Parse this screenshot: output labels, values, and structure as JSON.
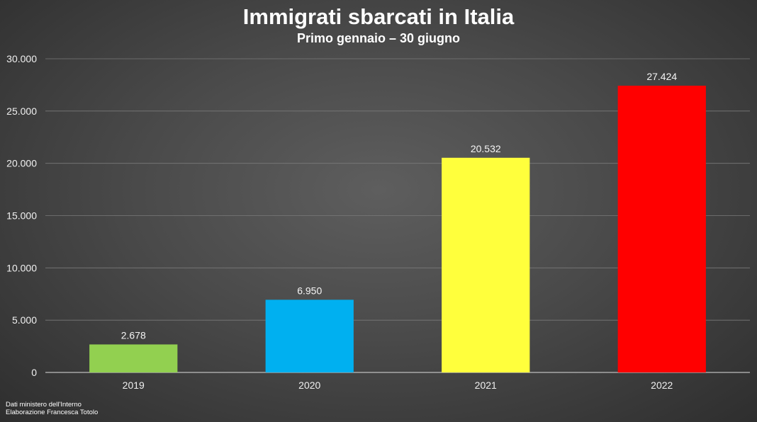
{
  "chart_data": {
    "type": "bar",
    "title": "Immigrati sbarcati in Italia",
    "subtitle": "Primo gennaio – 30 giugno",
    "categories": [
      "2019",
      "2020",
      "2021",
      "2022"
    ],
    "values": [
      2678,
      6950,
      20532,
      27424
    ],
    "value_labels": [
      "2.678",
      "6.950",
      "20.532",
      "27.424"
    ],
    "colors": [
      "#92d050",
      "#00b0f0",
      "#ffff3c",
      "#ff0000"
    ],
    "ylim": [
      0,
      30000
    ],
    "yticks": [
      0,
      5000,
      10000,
      15000,
      20000,
      25000,
      30000
    ],
    "ytick_labels": [
      "0",
      "5.000",
      "10.000",
      "15.000",
      "20.000",
      "25.000",
      "30.000"
    ],
    "xlabel": "",
    "ylabel": "",
    "grid": true,
    "legend": "none"
  },
  "footer": {
    "source_line1": "Dati ministero dell'Interno",
    "source_line2": "Elaborazione Francesca Totolo"
  }
}
